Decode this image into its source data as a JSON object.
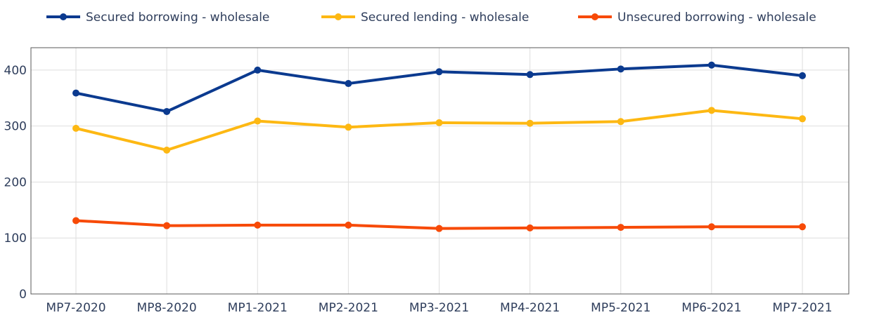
{
  "chart_data": {
    "type": "line",
    "categories": [
      "MP7-2020",
      "MP8-2020",
      "MP1-2021",
      "MP2-2021",
      "MP3-2021",
      "MP4-2021",
      "MP5-2021",
      "MP6-2021",
      "MP7-2021"
    ],
    "series": [
      {
        "name": "Secured borrowing - wholesale",
        "color": "#0b3a8f",
        "values": [
          359,
          326,
          400,
          376,
          397,
          392,
          402,
          409,
          390
        ]
      },
      {
        "name": "Secured lending - wholesale",
        "color": "#fdb813",
        "values": [
          296,
          257,
          309,
          298,
          306,
          305,
          308,
          328,
          313
        ]
      },
      {
        "name": "Unsecured borrowing - wholesale",
        "color": "#f74a07",
        "values": [
          131,
          122,
          123,
          123,
          117,
          118,
          119,
          120,
          120
        ]
      }
    ],
    "yticks": [
      0,
      100,
      200,
      300,
      400
    ],
    "ylim": [
      0,
      440
    ],
    "grid": true,
    "legend_position": "top"
  }
}
